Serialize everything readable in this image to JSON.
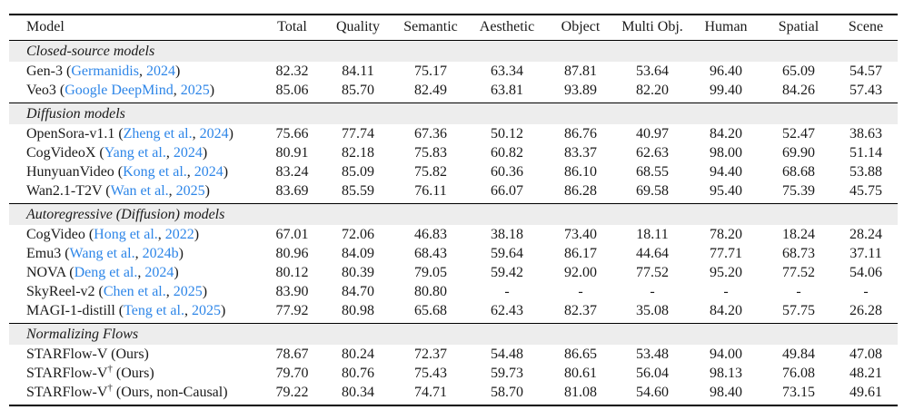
{
  "table": {
    "colors": {
      "link": "#2E86E8",
      "section_bg": "#EDEDED",
      "rule": "#000000"
    },
    "columns": [
      "Model",
      "Total",
      "Quality",
      "Semantic",
      "Aesthetic",
      "Object",
      "Multi Obj.",
      "Human",
      "Spatial",
      "Scene"
    ],
    "sections": [
      {
        "label": "Closed-source models",
        "rows": [
          {
            "model": "Gen-3",
            "sup": "",
            "cite": {
              "author": "Germanidis",
              "year": "2024"
            },
            "paren": null,
            "values": [
              "82.32",
              "84.11",
              "75.17",
              "63.34",
              "87.81",
              "53.64",
              "96.40",
              "65.09",
              "54.57"
            ]
          },
          {
            "model": "Veo3",
            "sup": "",
            "cite": {
              "author": "Google DeepMind",
              "year": "2025"
            },
            "paren": null,
            "values": [
              "85.06",
              "85.70",
              "82.49",
              "63.81",
              "93.89",
              "82.20",
              "99.40",
              "84.26",
              "57.43"
            ]
          }
        ]
      },
      {
        "label": "Diffusion models",
        "rows": [
          {
            "model": "OpenSora-v1.1",
            "sup": "",
            "cite": {
              "author": "Zheng et al.",
              "year": "2024"
            },
            "paren": null,
            "values": [
              "75.66",
              "77.74",
              "67.36",
              "50.12",
              "86.76",
              "40.97",
              "84.20",
              "52.47",
              "38.63"
            ]
          },
          {
            "model": "CogVideoX",
            "sup": "",
            "cite": {
              "author": "Yang et al.",
              "year": "2024"
            },
            "paren": null,
            "values": [
              "80.91",
              "82.18",
              "75.83",
              "60.82",
              "83.37",
              "62.63",
              "98.00",
              "69.90",
              "51.14"
            ]
          },
          {
            "model": "HunyuanVideo",
            "sup": "",
            "cite": {
              "author": "Kong et al.",
              "year": "2024"
            },
            "paren": null,
            "values": [
              "83.24",
              "85.09",
              "75.82",
              "60.36",
              "86.10",
              "68.55",
              "94.40",
              "68.68",
              "53.88"
            ]
          },
          {
            "model": "Wan2.1-T2V",
            "sup": "",
            "cite": {
              "author": "Wan et al.",
              "year": "2025"
            },
            "paren": null,
            "values": [
              "83.69",
              "85.59",
              "76.11",
              "66.07",
              "86.28",
              "69.58",
              "95.40",
              "75.39",
              "45.75"
            ]
          }
        ]
      },
      {
        "label": "Autoregressive (Diffusion) models",
        "rows": [
          {
            "model": "CogVideo",
            "sup": "",
            "cite": {
              "author": "Hong et al.",
              "year": "2022"
            },
            "paren": null,
            "values": [
              "67.01",
              "72.06",
              "46.83",
              "38.18",
              "73.40",
              "18.11",
              "78.20",
              "18.24",
              "28.24"
            ]
          },
          {
            "model": "Emu3",
            "sup": "",
            "cite": {
              "author": "Wang et al.",
              "year": "2024b"
            },
            "paren": null,
            "values": [
              "80.96",
              "84.09",
              "68.43",
              "59.64",
              "86.17",
              "44.64",
              "77.71",
              "68.73",
              "37.11"
            ]
          },
          {
            "model": "NOVA",
            "sup": "",
            "cite": {
              "author": "Deng et al.",
              "year": "2024"
            },
            "paren": null,
            "values": [
              "80.12",
              "80.39",
              "79.05",
              "59.42",
              "92.00",
              "77.52",
              "95.20",
              "77.52",
              "54.06"
            ]
          },
          {
            "model": "SkyReel-v2",
            "sup": "",
            "cite": {
              "author": "Chen et al.",
              "year": "2025"
            },
            "paren": null,
            "values": [
              "83.90",
              "84.70",
              "80.80",
              "-",
              "-",
              "-",
              "-",
              "-",
              "-"
            ]
          },
          {
            "model": "MAGI-1-distill",
            "sup": "",
            "cite": {
              "author": "Teng et al.",
              "year": "2025"
            },
            "paren": null,
            "values": [
              "77.92",
              "80.98",
              "65.68",
              "62.43",
              "82.37",
              "35.08",
              "84.20",
              "57.75",
              "26.28"
            ]
          }
        ]
      },
      {
        "label": "Normalizing Flows",
        "rows": [
          {
            "model": "STARFlow-V",
            "sup": "",
            "cite": null,
            "paren": "Ours",
            "values": [
              "78.67",
              "80.24",
              "72.37",
              "54.48",
              "86.65",
              "53.48",
              "94.00",
              "49.84",
              "47.08"
            ]
          },
          {
            "model": "STARFlow-V",
            "sup": "†",
            "cite": null,
            "paren": "Ours",
            "values": [
              "79.70",
              "80.76",
              "75.43",
              "59.73",
              "80.61",
              "56.04",
              "98.13",
              "76.08",
              "48.21"
            ]
          },
          {
            "model": "STARFlow-V",
            "sup": "†",
            "cite": null,
            "paren": "Ours, non-Causal",
            "values": [
              "79.22",
              "80.34",
              "74.71",
              "58.70",
              "81.08",
              "54.60",
              "98.40",
              "73.15",
              "49.61"
            ]
          }
        ]
      }
    ]
  }
}
